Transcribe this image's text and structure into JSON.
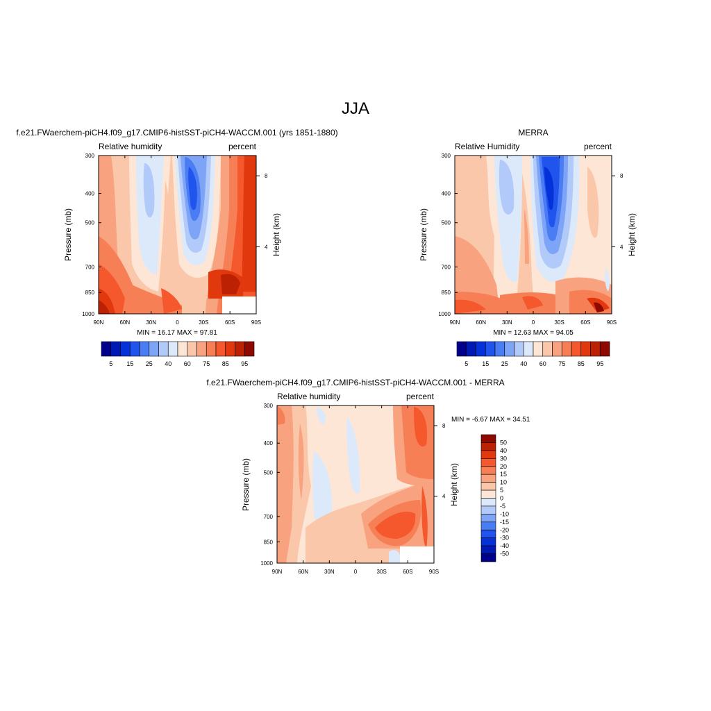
{
  "figure": {
    "title": "JJA"
  },
  "panels": [
    {
      "id": "model",
      "header": "f.e21.FWaerchem-piCH4.f09_g17.CMIP6-histSST-piCH4-WACCM.001 (yrs 1851-1880)",
      "left_label": "Relative humidity",
      "right_label": "percent",
      "stats": "MIN =  16.17  MAX =  97.81",
      "ylabel": "Pressure (mb)",
      "y2label": "Height (km)"
    },
    {
      "id": "obs",
      "header": "MERRA",
      "left_label": "Relative Humidity",
      "right_label": "percent",
      "stats": "MIN =  12.63  MAX =  94.05",
      "ylabel": "Pressure (mb)",
      "y2label": "Height (km)"
    },
    {
      "id": "diff",
      "header": "f.e21.FWaerchem-piCH4.f09_g17.CMIP6-histSST-piCH4-WACCM.001 - MERRA",
      "left_label": "Relative humidity",
      "right_label": "percent",
      "stats": "MIN =  -6.67  MAX =  34.51",
      "ylabel": "Pressure (mb)",
      "y2label": "Height (km)"
    }
  ],
  "chart_data": [
    {
      "type": "heatmap",
      "title": "Relative humidity (model)",
      "xlabel": "",
      "ylabel": "Pressure (mb)",
      "y2label": "Height (km)",
      "x_ticks": [
        "90N",
        "60N",
        "30N",
        "0",
        "30S",
        "60S",
        "90S"
      ],
      "y_ticks": [
        "300",
        "400",
        "500",
        "700",
        "850",
        "1000"
      ],
      "y_tick_values": [
        300,
        400,
        500,
        700,
        850,
        1000
      ],
      "y2_ticks": [
        "8",
        "4"
      ],
      "y2_tick_values": [
        350,
        600
      ],
      "x_range": [
        90,
        -90
      ],
      "y_range": [
        300,
        1000
      ],
      "units": "percent",
      "min": 16.17,
      "max": 97.81,
      "palette": [
        "#00008a",
        "#0019b5",
        "#0432d8",
        "#2154ec",
        "#4a7cf4",
        "#7ea4f7",
        "#b2caf9",
        "#dce9fb",
        "#fde6d5",
        "#fbc7aa",
        "#f9a27f",
        "#f77f55",
        "#f4582c",
        "#e2380e",
        "#bd2103",
        "#8e0900"
      ],
      "colorbar_labels": [
        "5",
        "15",
        "25",
        "40",
        "60",
        "75",
        "85",
        "95"
      ],
      "colorbar_label_positions": [
        1,
        3,
        5,
        7,
        9,
        11,
        13,
        15
      ],
      "notes": "Moist (60-95%) in NH and SH lower troposphere; dry minima (<40%) in subtropics near 30N and 20S at 400-600 mb"
    },
    {
      "type": "heatmap",
      "title": "Relative Humidity (MERRA)",
      "xlabel": "",
      "ylabel": "Pressure (mb)",
      "y2label": "Height (km)",
      "x_ticks": [
        "90N",
        "60N",
        "30N",
        "0",
        "30S",
        "60S",
        "90S"
      ],
      "y_ticks": [
        "300",
        "400",
        "500",
        "700",
        "850",
        "1000"
      ],
      "y_tick_values": [
        300,
        400,
        500,
        700,
        850,
        1000
      ],
      "y2_ticks": [
        "8",
        "4"
      ],
      "y2_tick_values": [
        350,
        600
      ],
      "x_range": [
        90,
        -90
      ],
      "y_range": [
        300,
        1000
      ],
      "units": "percent",
      "min": 12.63,
      "max": 94.05,
      "palette": [
        "#00008a",
        "#0019b5",
        "#0432d8",
        "#2154ec",
        "#4a7cf4",
        "#7ea4f7",
        "#b2caf9",
        "#dce9fb",
        "#fde6d5",
        "#fbc7aa",
        "#f9a27f",
        "#f77f55",
        "#f4582c",
        "#e2380e",
        "#bd2103",
        "#8e0900"
      ],
      "colorbar_labels": [
        "5",
        "15",
        "25",
        "40",
        "60",
        "75",
        "85",
        "95"
      ],
      "colorbar_label_positions": [
        1,
        3,
        5,
        7,
        9,
        11,
        13,
        15
      ],
      "notes": "Strong dry minimum (<15%) near 15S at 350-550 mb; moist boundary layer at all latitudes"
    },
    {
      "type": "heatmap",
      "title": "Relative humidity difference (model - MERRA)",
      "xlabel": "",
      "ylabel": "Pressure (mb)",
      "y2label": "Height (km)",
      "x_ticks": [
        "90N",
        "60N",
        "30N",
        "0",
        "30S",
        "60S",
        "90S"
      ],
      "y_ticks": [
        "300",
        "400",
        "500",
        "700",
        "850",
        "1000"
      ],
      "y_tick_values": [
        300,
        400,
        500,
        700,
        850,
        1000
      ],
      "y2_ticks": [
        "8",
        "4"
      ],
      "y2_tick_values": [
        350,
        600
      ],
      "x_range": [
        90,
        -90
      ],
      "y_range": [
        300,
        1000
      ],
      "units": "percent",
      "min": -6.67,
      "max": 34.51,
      "palette": [
        "#00008a",
        "#0019b5",
        "#0432d8",
        "#2154ec",
        "#4a7cf4",
        "#7ea4f7",
        "#b2caf9",
        "#dce9fb",
        "#fde6d5",
        "#fbc7aa",
        "#f9a27f",
        "#f77f55",
        "#f4582c",
        "#e2380e",
        "#bd2103",
        "#8e0900"
      ],
      "colorbar_labels": [
        "50",
        "40",
        "30",
        "20",
        "15",
        "10",
        "5",
        "0",
        "-5",
        "-10",
        "-15",
        "-20",
        "-30",
        "-40",
        "-50"
      ],
      "notes": "Mostly positive (model moister) by 5-30%; maximum ~30% near 40-60S around 850 mb; small negative (-5 to 0) near 30N and 10S mid-troposphere"
    }
  ]
}
